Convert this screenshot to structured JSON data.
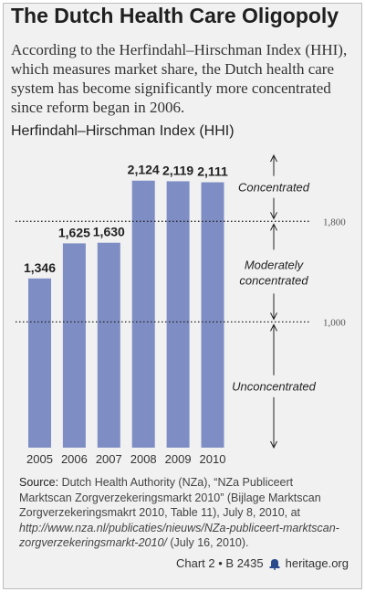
{
  "title": "The Dutch Health Care Oligopoly",
  "description": "According to the Herfindahl–Hirschman Index (HHI), which measures market share, the Dutch health care system has become significantly more concentrated since reform began in 2006.",
  "chart_title": "Herfindahl–Hirschman Index (HHI)",
  "chart_data": {
    "type": "bar",
    "categories": [
      "2005",
      "2006",
      "2007",
      "2008",
      "2009",
      "2010"
    ],
    "values": [
      1346,
      1625,
      1630,
      2124,
      2119,
      2111
    ],
    "value_labels": [
      "1,346",
      "1,625",
      "1,630",
      "2,124",
      "2,119",
      "2,111"
    ],
    "bar_color": "#7e8ec4",
    "ylim": [
      0,
      2500
    ],
    "thresholds": [
      {
        "value": 1800,
        "label": "1,800"
      },
      {
        "value": 1000,
        "label": "1,000"
      }
    ],
    "zones": [
      {
        "label": "Concentrated",
        "from": 1800,
        "to": 2500
      },
      {
        "label": "Moderately concentrated",
        "from": 1000,
        "to": 1800
      },
      {
        "label": "Unconcentrated",
        "from": 0,
        "to": 1000
      }
    ]
  },
  "source": {
    "label": "Source:",
    "text": " Dutch Health Authority (NZa), “NZa Publiceert Marktscan Zorgverzekeringsmarkt 2010” (Bijlage Marktscan Zorgverzekeringsmakrt 2010, Table 11), July 8, 2010, at ",
    "url": "http://www.nza.nl/publicaties/nieuws/NZa-publiceert-marktscan-zorgverzekeringsmarkt-2010/",
    "date": " (July 16, 2010)."
  },
  "footer": {
    "chart_ref": "Chart 2 • B 2435",
    "site": "heritage.org",
    "icon": "bell-icon"
  }
}
